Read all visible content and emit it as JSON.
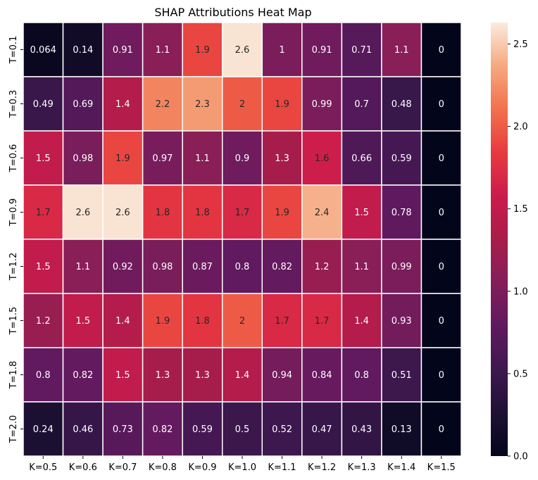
{
  "chart_data": {
    "type": "heatmap",
    "title": "SHAP Attributions Heat Map",
    "xlabel": "",
    "ylabel": "",
    "x_categories": [
      "K=0.5",
      "K=0.6",
      "K=0.7",
      "K=0.8",
      "K=0.9",
      "K=1.0",
      "K=1.1",
      "K=1.2",
      "K=1.3",
      "K=1.4",
      "K=1.5"
    ],
    "y_categories": [
      "T=0.1",
      "T=0.3",
      "T=0.6",
      "T=0.9",
      "T=1.2",
      "T=1.5",
      "T=1.8",
      "T=2.0"
    ],
    "values": [
      [
        0.064,
        0.14,
        0.91,
        1.1,
        1.9,
        2.6,
        1,
        0.91,
        0.71,
        1.1,
        0
      ],
      [
        0.49,
        0.69,
        1.4,
        2.2,
        2.3,
        2,
        1.9,
        0.99,
        0.7,
        0.48,
        0
      ],
      [
        1.5,
        0.98,
        1.9,
        0.97,
        1.1,
        0.9,
        1.3,
        1.6,
        0.66,
        0.59,
        0
      ],
      [
        1.7,
        2.6,
        2.6,
        1.8,
        1.8,
        1.7,
        1.9,
        2.4,
        1.5,
        0.78,
        0
      ],
      [
        1.5,
        1.1,
        0.92,
        0.98,
        0.87,
        0.8,
        0.82,
        1.2,
        1.1,
        0.99,
        0
      ],
      [
        1.2,
        1.5,
        1.4,
        1.9,
        1.8,
        2,
        1.7,
        1.7,
        1.4,
        0.93,
        0
      ],
      [
        0.8,
        0.82,
        1.5,
        1.3,
        1.3,
        1.4,
        0.94,
        0.84,
        0.8,
        0.51,
        0
      ],
      [
        0.24,
        0.46,
        0.73,
        0.82,
        0.59,
        0.5,
        0.52,
        0.47,
        0.43,
        0.13,
        0
      ]
    ],
    "vmin": 0,
    "vmax": 2.63,
    "colorbar_ticks": [
      "0.0",
      "0.5",
      "1.0",
      "1.5",
      "2.0",
      "2.5"
    ],
    "colorbar_tick_values": [
      0,
      0.5,
      1.0,
      1.5,
      2.0,
      2.5
    ],
    "colormap": "rocket",
    "grid": true
  }
}
